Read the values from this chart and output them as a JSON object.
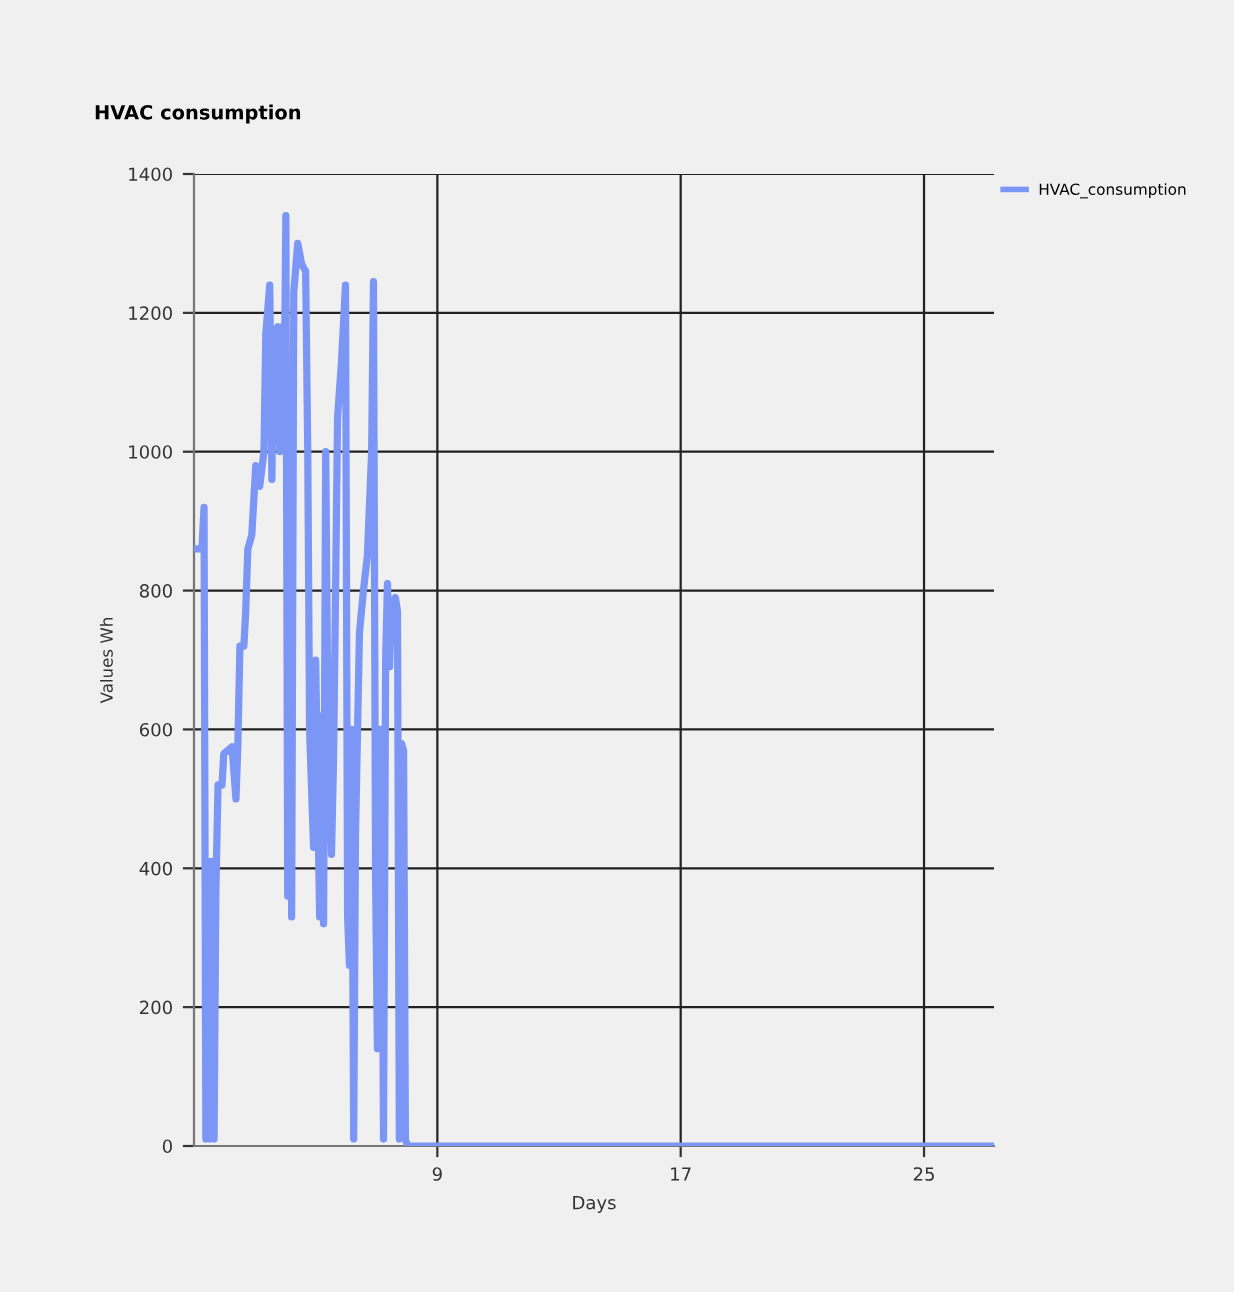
{
  "chart_data": {
    "type": "line",
    "title": "HVAC consumption",
    "xlabel": "Days",
    "ylabel": "Values Wh",
    "xlim": [
      1,
      27.3
    ],
    "xticks": [
      9,
      17,
      25
    ],
    "ylim": [
      0,
      1400
    ],
    "yticks": [
      0,
      200,
      400,
      600,
      800,
      1000,
      1200,
      1400
    ],
    "grid": true,
    "legend": "top right",
    "marker": "none",
    "line_style": "solid",
    "series": [
      {
        "name": "HVAC_consumption",
        "color": "#7b96f5",
        "x": [
          1.0,
          1.26,
          1.33,
          1.39,
          1.46,
          1.52,
          1.59,
          1.66,
          1.72,
          1.79,
          1.92,
          1.98,
          2.25,
          2.38,
          2.44,
          2.51,
          2.64,
          2.7,
          2.77,
          2.9,
          3.03,
          3.16,
          3.3,
          3.36,
          3.49,
          3.56,
          3.62,
          3.75,
          3.82,
          3.89,
          3.95,
          4.02,
          4.08,
          4.15,
          4.21,
          4.28,
          4.41,
          4.54,
          4.67,
          4.74,
          4.8,
          4.93,
          5.0,
          5.13,
          5.2,
          5.26,
          5.33,
          5.39,
          5.52,
          5.59,
          5.72,
          5.85,
          5.98,
          6.05,
          6.11,
          6.18,
          6.25,
          6.31,
          6.44,
          6.57,
          6.7,
          6.84,
          6.9,
          6.97,
          7.03,
          7.1,
          7.16,
          7.23,
          7.3,
          7.36,
          7.43,
          7.49,
          7.62,
          7.69,
          7.75,
          7.82,
          7.89,
          7.95,
          8.02,
          8.41,
          27.2
        ],
        "values": [
          860,
          860,
          920,
          10,
          410,
          10,
          410,
          10,
          370,
          520,
          520,
          565,
          575,
          500,
          575,
          720,
          720,
          770,
          860,
          880,
          980,
          950,
          1000,
          1170,
          1240,
          960,
          1170,
          1180,
          1000,
          1180,
          1010,
          1340,
          360,
          1010,
          330,
          1230,
          1300,
          1270,
          1260,
          1000,
          600,
          430,
          700,
          330,
          620,
          320,
          1000,
          680,
          420,
          560,
          1050,
          1130,
          1240,
          330,
          260,
          600,
          10,
          450,
          740,
          800,
          850,
          1000,
          1245,
          380,
          140,
          600,
          560,
          10,
          700,
          810,
          690,
          780,
          790,
          770,
          10,
          580,
          570,
          10,
          0,
          0,
          0
        ]
      }
    ]
  }
}
